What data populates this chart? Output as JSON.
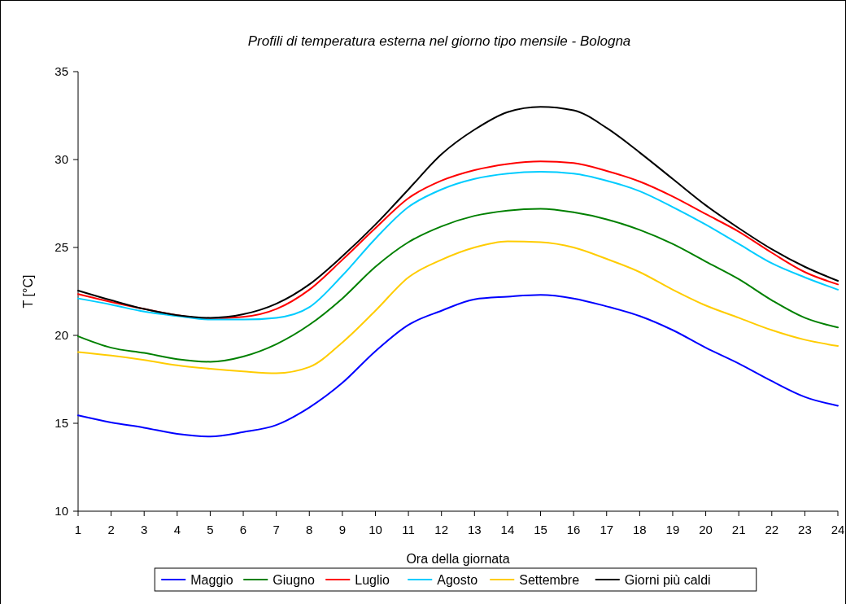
{
  "chart_data": {
    "type": "line",
    "title": "Profili di temperatura esterna nel giorno tipo mensile - Bologna",
    "xlabel": "Ora della giornata",
    "ylabel": "T [°C]",
    "x": [
      1,
      2,
      3,
      4,
      5,
      6,
      7,
      8,
      9,
      10,
      11,
      12,
      13,
      14,
      15,
      16,
      17,
      18,
      19,
      20,
      21,
      22,
      23,
      24
    ],
    "xlim": [
      1,
      24
    ],
    "xticks": [
      1,
      2,
      3,
      4,
      5,
      6,
      7,
      8,
      9,
      10,
      11,
      12,
      13,
      14,
      15,
      16,
      17,
      18,
      19,
      20,
      21,
      22,
      23,
      24
    ],
    "ylim": [
      10,
      35
    ],
    "yticks": [
      10,
      15,
      20,
      25,
      30,
      35
    ],
    "grid": false,
    "legend": "bottom",
    "marker": "none",
    "line_style": "solid",
    "series": [
      {
        "name": "Maggio",
        "color": "#0000ff",
        "values": [
          15.45,
          15.05,
          14.75,
          14.4,
          14.25,
          14.5,
          14.9,
          15.9,
          17.3,
          19.1,
          20.6,
          21.4,
          22.05,
          22.2,
          22.3,
          22.1,
          21.65,
          21.1,
          20.3,
          19.3,
          18.4,
          17.4,
          16.5,
          16.0
        ]
      },
      {
        "name": "Giugno",
        "color": "#008000",
        "values": [
          19.95,
          19.3,
          19.0,
          18.65,
          18.5,
          18.8,
          19.5,
          20.6,
          22.1,
          23.9,
          25.3,
          26.2,
          26.8,
          27.1,
          27.2,
          27.0,
          26.6,
          26.0,
          25.2,
          24.2,
          23.2,
          22.0,
          21.0,
          20.45
        ]
      },
      {
        "name": "Luglio",
        "color": "#ff0000",
        "values": [
          22.35,
          21.9,
          21.5,
          21.15,
          20.95,
          21.05,
          21.5,
          22.6,
          24.3,
          26.1,
          27.8,
          28.8,
          29.4,
          29.75,
          29.9,
          29.8,
          29.35,
          28.75,
          27.9,
          26.9,
          25.9,
          24.7,
          23.6,
          22.9
        ]
      },
      {
        "name": "Agosto",
        "color": "#00ccff",
        "values": [
          22.1,
          21.75,
          21.35,
          21.1,
          20.9,
          20.9,
          21.0,
          21.6,
          23.4,
          25.5,
          27.3,
          28.3,
          28.9,
          29.2,
          29.3,
          29.2,
          28.8,
          28.2,
          27.3,
          26.3,
          25.2,
          24.1,
          23.3,
          22.6
        ]
      },
      {
        "name": "Settembre",
        "color": "#ffcc00",
        "values": [
          19.05,
          18.85,
          18.6,
          18.3,
          18.1,
          17.95,
          17.85,
          18.2,
          19.6,
          21.4,
          23.3,
          24.3,
          25.0,
          25.35,
          25.3,
          25.0,
          24.35,
          23.6,
          22.6,
          21.7,
          21.0,
          20.3,
          19.75,
          19.4
        ]
      },
      {
        "name": "Giorni più caldi",
        "color": "#000000",
        "values": [
          22.55,
          22.0,
          21.5,
          21.15,
          21.0,
          21.2,
          21.8,
          22.9,
          24.5,
          26.3,
          28.3,
          30.3,
          31.7,
          32.7,
          33.0,
          32.8,
          31.8,
          30.4,
          28.9,
          27.4,
          26.1,
          24.9,
          23.9,
          23.1
        ]
      }
    ]
  }
}
